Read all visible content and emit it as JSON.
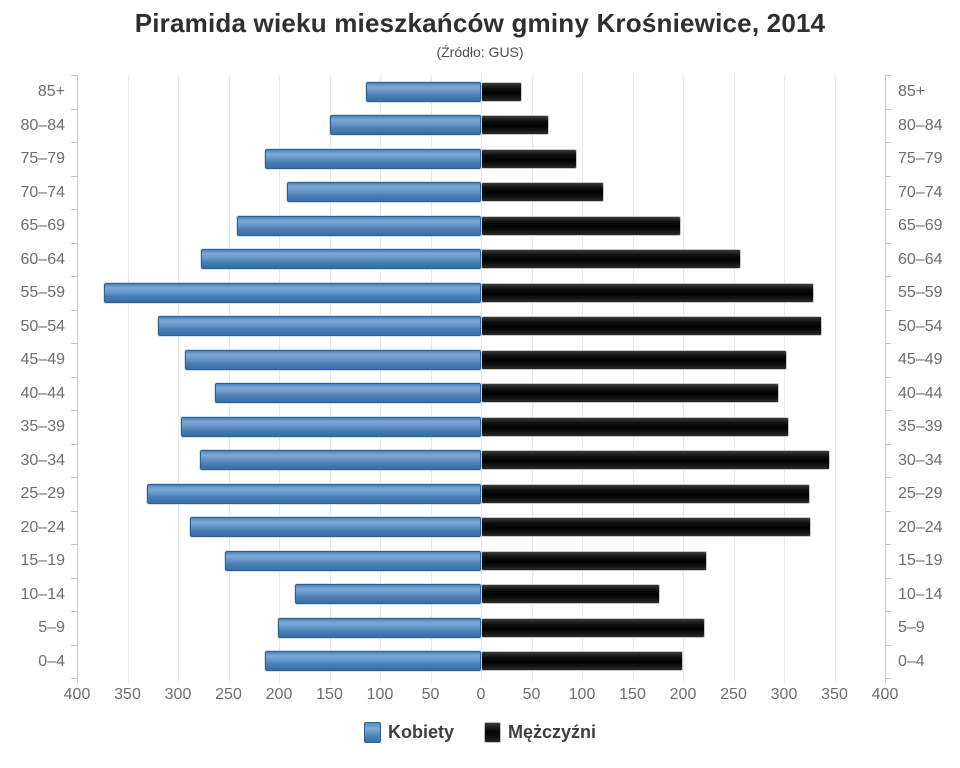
{
  "title": "Piramida wieku mieszkańców gminy Krośniewice, 2014",
  "subtitle": "(Źródło: GUS)",
  "legend": {
    "kobiety_label": "Kobiety",
    "mezczyzni_label": "Mężczyźni"
  },
  "colors": {
    "kobiety": "#4d83ba",
    "mezczyzni": "#111111",
    "grid": "#e9e9e9",
    "axis": "#cccccc",
    "labels": "#6e6e6e",
    "title": "#2f2f2f"
  },
  "chart_data": {
    "type": "bar",
    "variant": "population-pyramid",
    "title": "Piramida wieku mieszkańców gminy Krośniewice, 2014",
    "subtitle": "(Źródło: GUS)",
    "categories": [
      "85+",
      "80–84",
      "75–79",
      "70–74",
      "65–69",
      "60–64",
      "55–59",
      "50–54",
      "45–49",
      "40–44",
      "35–39",
      "30–34",
      "25–29",
      "20–24",
      "15–19",
      "10–14",
      "5–9",
      "0–4"
    ],
    "series": [
      {
        "name": "Kobiety",
        "side": "left",
        "color": "#4d83ba",
        "values": [
          114,
          150,
          214,
          192,
          242,
          277,
          373,
          320,
          293,
          263,
          297,
          278,
          331,
          288,
          253,
          184,
          201,
          214
        ]
      },
      {
        "name": "Mężczyźni",
        "side": "right",
        "color": "#111111",
        "values": [
          41,
          67,
          95,
          122,
          198,
          257,
          330,
          338,
          303,
          295,
          305,
          346,
          326,
          327,
          224,
          177,
          222,
          200
        ]
      }
    ],
    "x_tick_labels": [
      "400",
      "350",
      "300",
      "250",
      "200",
      "150",
      "100",
      "50",
      "0",
      "50",
      "100",
      "150",
      "200",
      "250",
      "300",
      "350",
      "400"
    ],
    "xlim": [
      -400,
      400
    ],
    "grid": true,
    "legend_position": "bottom"
  }
}
